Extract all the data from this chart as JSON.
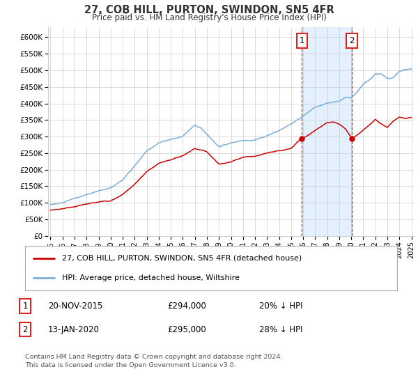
{
  "title": "27, COB HILL, PURTON, SWINDON, SN5 4FR",
  "subtitle": "Price paid vs. HM Land Registry's House Price Index (HPI)",
  "ylabel_ticks": [
    "£0",
    "£50K",
    "£100K",
    "£150K",
    "£200K",
    "£250K",
    "£300K",
    "£350K",
    "£400K",
    "£450K",
    "£500K",
    "£550K",
    "£600K"
  ],
  "ylim": [
    0,
    630000
  ],
  "yticks": [
    0,
    50000,
    100000,
    150000,
    200000,
    250000,
    300000,
    350000,
    400000,
    450000,
    500000,
    550000,
    600000
  ],
  "xmin": 1994.8,
  "xmax": 2025.2,
  "marker1_x": 2015.9,
  "marker1_y": 294000,
  "marker2_x": 2020.04,
  "marker2_y": 295000,
  "sale1_date": "20-NOV-2015",
  "sale1_price": "£294,000",
  "sale1_hpi": "20% ↓ HPI",
  "sale2_date": "13-JAN-2020",
  "sale2_price": "£295,000",
  "sale2_hpi": "28% ↓ HPI",
  "legend_label1": "27, COB HILL, PURTON, SWINDON, SN5 4FR (detached house)",
  "legend_label2": "HPI: Average price, detached house, Wiltshire",
  "footer": "Contains HM Land Registry data © Crown copyright and database right 2024.\nThis data is licensed under the Open Government Licence v3.0.",
  "line_color_red": "#cc0000",
  "line_color_blue": "#7aaddc",
  "shaded_color": "#ddeeff",
  "vline_color": "#dd2222",
  "bg_color": "#ffffff",
  "grid_color": "#cccccc",
  "title_color": "#333333"
}
